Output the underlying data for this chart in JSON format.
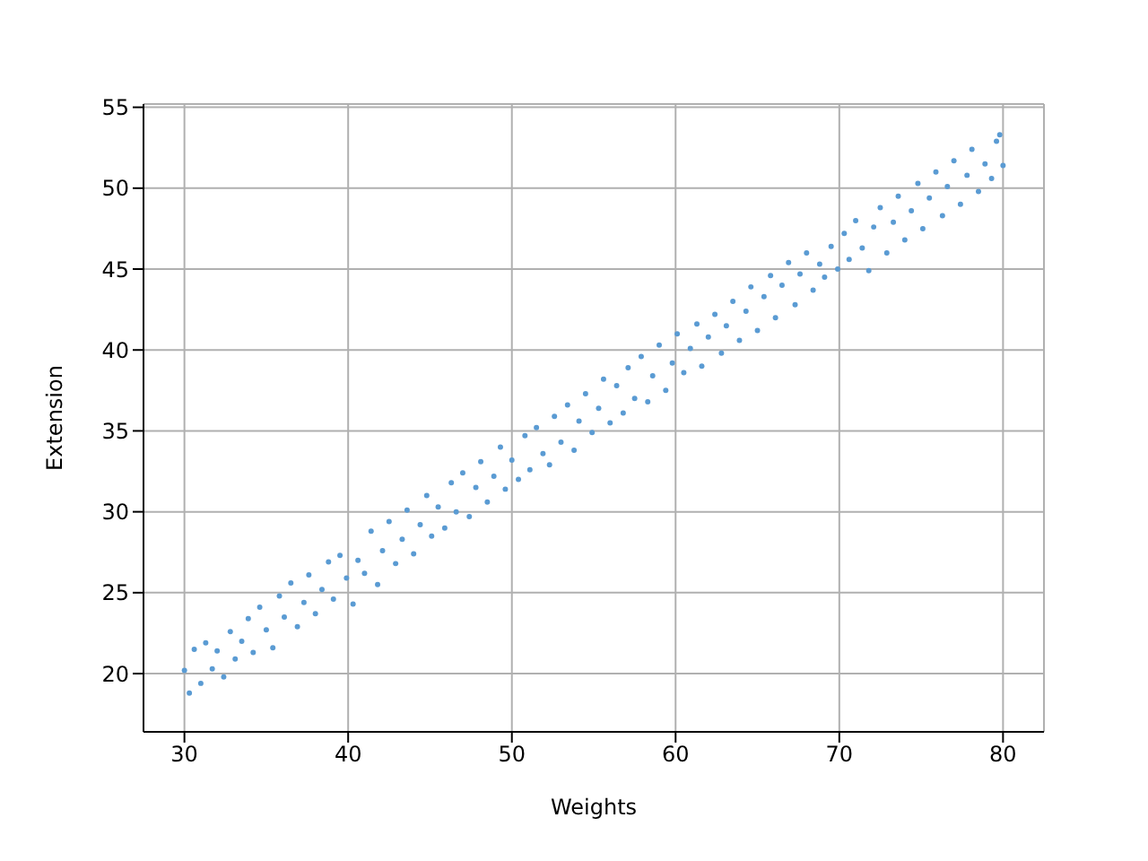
{
  "chart_data": {
    "type": "scatter",
    "xlabel": "Weights",
    "ylabel": "Extension",
    "xlim": [
      27.5,
      82.5
    ],
    "xticks": [
      30,
      40,
      50,
      60,
      70,
      80
    ],
    "ylim": [
      16.4,
      55.2
    ],
    "yticks": [
      20,
      25,
      30,
      35,
      40,
      45,
      50,
      55
    ],
    "grid": true,
    "legend": false,
    "marker": "circle",
    "series": [
      {
        "color": "#5a9bd3",
        "x": [
          30.0,
          30.3,
          30.6,
          31.0,
          31.3,
          31.7,
          32.0,
          32.4,
          32.8,
          33.1,
          33.5,
          33.9,
          34.2,
          34.6,
          35.0,
          35.4,
          35.8,
          36.1,
          36.5,
          36.9,
          37.3,
          37.6,
          38.0,
          38.4,
          38.8,
          39.1,
          39.5,
          39.9,
          40.3,
          40.6,
          41.0,
          41.4,
          41.8,
          42.1,
          42.5,
          42.9,
          43.3,
          43.6,
          44.0,
          44.4,
          44.8,
          45.1,
          45.5,
          45.9,
          46.3,
          46.6,
          47.0,
          47.4,
          47.8,
          48.1,
          48.5,
          48.9,
          49.3,
          49.6,
          50.0,
          50.4,
          50.8,
          51.1,
          51.5,
          51.9,
          52.3,
          52.6,
          53.0,
          53.4,
          53.8,
          54.1,
          54.5,
          54.9,
          55.3,
          55.6,
          56.0,
          56.4,
          56.8,
          57.1,
          57.5,
          57.9,
          58.3,
          58.6,
          59.0,
          59.4,
          59.8,
          60.1,
          60.5,
          60.9,
          61.3,
          61.6,
          62.0,
          62.4,
          62.8,
          63.1,
          63.5,
          63.9,
          64.3,
          64.6,
          65.0,
          65.4,
          65.8,
          66.1,
          66.5,
          66.9,
          67.3,
          67.6,
          68.0,
          68.4,
          68.8,
          69.1,
          69.5,
          69.9,
          70.3,
          70.6,
          71.0,
          71.4,
          71.8,
          72.1,
          72.5,
          72.9,
          73.3,
          73.6,
          74.0,
          74.4,
          74.8,
          75.1,
          75.5,
          75.9,
          76.3,
          76.6,
          77.0,
          77.4,
          77.8,
          78.1,
          78.5,
          78.9,
          79.3,
          79.6,
          80.0,
          79.8
        ],
        "values": [
          20.2,
          18.8,
          21.5,
          19.4,
          21.9,
          20.3,
          21.4,
          19.8,
          22.6,
          20.9,
          22.0,
          23.4,
          21.3,
          24.1,
          22.7,
          21.6,
          24.8,
          23.5,
          25.6,
          22.9,
          24.4,
          26.1,
          23.7,
          25.2,
          26.9,
          24.6,
          27.3,
          25.9,
          24.3,
          27.0,
          26.2,
          28.8,
          25.5,
          27.6,
          29.4,
          26.8,
          28.3,
          30.1,
          27.4,
          29.2,
          31.0,
          28.5,
          30.3,
          29.0,
          31.8,
          30.0,
          32.4,
          29.7,
          31.5,
          33.1,
          30.6,
          32.2,
          34.0,
          31.4,
          33.2,
          32.0,
          34.7,
          32.6,
          35.2,
          33.6,
          32.9,
          35.9,
          34.3,
          36.6,
          33.8,
          35.6,
          37.3,
          34.9,
          36.4,
          38.2,
          35.5,
          37.8,
          36.1,
          38.9,
          37.0,
          39.6,
          36.8,
          38.4,
          40.3,
          37.5,
          39.2,
          41.0,
          38.6,
          40.1,
          41.6,
          39.0,
          40.8,
          42.2,
          39.8,
          41.5,
          43.0,
          40.6,
          42.4,
          43.9,
          41.2,
          43.3,
          44.6,
          42.0,
          44.0,
          45.4,
          42.8,
          44.7,
          46.0,
          43.7,
          45.3,
          44.5,
          46.4,
          45.0,
          47.2,
          45.6,
          48.0,
          46.3,
          44.9,
          47.6,
          48.8,
          46.0,
          47.9,
          49.5,
          46.8,
          48.6,
          50.3,
          47.5,
          49.4,
          51.0,
          48.3,
          50.1,
          51.7,
          49.0,
          50.8,
          52.4,
          49.8,
          51.5,
          50.6,
          52.9,
          51.4,
          53.3
        ]
      }
    ]
  }
}
